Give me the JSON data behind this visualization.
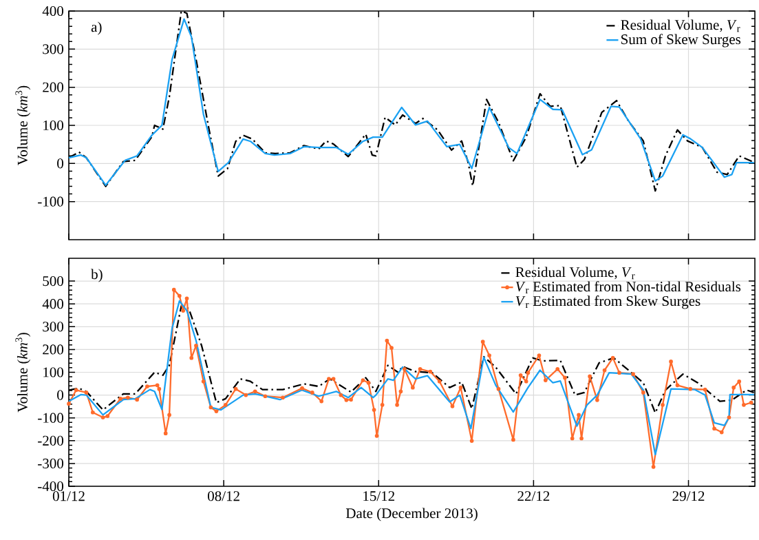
{
  "chart_data": [
    {
      "type": "line",
      "ylabel": "Volume (*km*$^{3}$)",
      "annotations": [
        "a)"
      ],
      "xlim": [
        "2013-12-01",
        "2014-01-01"
      ],
      "ylim": [
        -200,
        400
      ],
      "xticks": [
        {
          "value": "2013-12-01",
          "label": null
        },
        {
          "value": "2013-12-08",
          "label": null
        },
        {
          "value": "2013-12-15",
          "label": null
        },
        {
          "value": "2013-12-22",
          "label": null
        },
        {
          "value": "2013-12-29",
          "label": null
        }
      ],
      "yticks": [
        -100,
        0,
        100,
        200,
        300,
        400
      ],
      "grid": true,
      "legend": "top right",
      "tick_labels": "y",
      "series": [
        {
          "name": "Residual Volume, *V*$_{r}$",
          "color": "#000000",
          "line_style": "dashdot",
          "x": [
            "2013-12-01T00:00",
            "2013-12-01T11:00",
            "2013-12-01T19:00",
            "2013-12-02T16:00",
            "2013-12-03T11:00",
            "2013-12-04T00:00",
            "2013-12-04T18:00",
            "2013-12-04T21:00",
            "2013-12-05T06:00",
            "2013-12-05T13:00",
            "2013-12-06T02:00",
            "2013-12-06T08:00",
            "2013-12-06T18:00",
            "2013-12-07T08:00",
            "2013-12-07T18:00",
            "2013-12-08T04:00",
            "2013-12-08T13:00",
            "2013-12-08T21:00",
            "2013-12-09T07:00",
            "2013-12-09T21:00",
            "2013-12-10T08:00",
            "2013-12-11T00:00",
            "2013-12-11T15:00",
            "2013-12-12T07:00",
            "2013-12-12T15:00",
            "2013-12-12T23:00",
            "2013-12-13T15:00",
            "2013-12-14T10:00",
            "2013-12-14T17:00",
            "2013-12-14T21:00",
            "2013-12-15T07:00",
            "2013-12-15T18:00",
            "2013-12-16T02:00",
            "2013-12-16T16:00",
            "2013-12-17T00:00",
            "2013-12-17T16:00",
            "2013-12-18T07:00",
            "2013-12-18T18:00",
            "2013-12-19T01:00",
            "2013-12-19T06:00",
            "2013-12-19T21:00",
            "2013-12-20T10:00",
            "2013-12-21T02:00",
            "2013-12-21T16:00",
            "2013-12-22T07:00",
            "2013-12-22T18:00",
            "2013-12-23T05:00",
            "2013-12-23T23:00",
            "2013-12-24T07:00",
            "2013-12-25T02:00",
            "2013-12-25T18:00",
            "2013-12-26T07:00",
            "2013-12-26T23:00",
            "2013-12-27T12:00",
            "2013-12-27T23:00",
            "2013-12-28T12:00",
            "2013-12-28T23:00",
            "2013-12-29T15:00",
            "2013-12-30T07:00",
            "2013-12-30T18:00",
            "2013-12-31T07:00",
            "2013-12-31T23:00"
          ],
          "values": [
            15,
            30,
            15,
            -60,
            5,
            8,
            70,
            100,
            90,
            175,
            400,
            394,
            273,
            90,
            -33,
            -14,
            58,
            74,
            64,
            28,
            26,
            28,
            47,
            38,
            59,
            51,
            18,
            77,
            22,
            20,
            121,
            101,
            127,
            105,
            118,
            88,
            35,
            59,
            3,
            -59,
            168,
            108,
            7,
            69,
            183,
            150,
            152,
            -10,
            10,
            134,
            165,
            111,
            59,
            -72,
            20,
            88,
            59,
            42,
            -23,
            -29,
            20,
            3
          ]
        },
        {
          "name": "Sum of Skew Surges",
          "color": "#1ba1f2",
          "x": [
            "2013-12-01T00:00",
            "2013-12-01T13:00",
            "2013-12-01T19:00",
            "2013-12-02T16:00",
            "2013-12-03T13:00",
            "2013-12-04T02:00",
            "2013-12-04T18:00",
            "2013-12-05T05:00",
            "2013-12-05T16:00",
            "2013-12-06T05:00",
            "2013-12-06T13:00",
            "2013-12-07T02:00",
            "2013-12-07T18:00",
            "2013-12-08T05:00",
            "2013-12-08T21:00",
            "2013-12-09T05:00",
            "2013-12-09T21:00",
            "2013-12-10T07:00",
            "2013-12-11T00:00",
            "2013-12-11T15:00",
            "2013-12-12T07:00",
            "2013-12-13T02:00",
            "2013-12-13T15:00",
            "2013-12-14T07:00",
            "2013-12-14T18:00",
            "2013-12-15T04:00",
            "2013-12-16T01:00",
            "2013-12-16T16:00",
            "2013-12-17T05:00",
            "2013-12-18T02:00",
            "2013-12-18T16:00",
            "2013-12-19T05:00",
            "2013-12-20T00:00",
            "2013-12-20T21:00",
            "2013-12-21T06:00",
            "2013-12-22T07:00",
            "2013-12-22T21:00",
            "2013-12-23T07:00",
            "2013-12-24T05:00",
            "2013-12-24T15:00",
            "2013-12-25T12:00",
            "2013-12-25T21:00",
            "2013-12-26T20:00",
            "2013-12-27T12:00",
            "2013-12-27T20:00",
            "2013-12-28T18:00",
            "2013-12-29T02:00",
            "2013-12-29T15:00",
            "2013-12-30T15:00",
            "2013-12-30T23:00",
            "2013-12-31T04:00",
            "2013-12-31T23:00"
          ],
          "values": [
            15,
            22,
            15,
            -57,
            8,
            20,
            74,
            100,
            273,
            379,
            332,
            129,
            -21,
            2,
            64,
            58,
            26,
            22,
            26,
            44,
            42,
            42,
            24,
            58,
            69,
            69,
            147,
            101,
            111,
            44,
            50,
            -13,
            147,
            42,
            26,
            168,
            142,
            141,
            23,
            36,
            150,
            148,
            65,
            -46,
            -33,
            75,
            65,
            42,
            -36,
            -29,
            2,
            2
          ]
        }
      ]
    },
    {
      "type": "line",
      "xlabel": "Date (December 2013)",
      "ylabel": "Volume (*km*$^{3}$)",
      "annotations": [
        "b)"
      ],
      "xlim": [
        "2013-12-01",
        "2014-01-01"
      ],
      "ylim": [
        -400,
        600
      ],
      "xticks": [
        {
          "value": "2013-12-01",
          "label": "01/12"
        },
        {
          "value": "2013-12-08",
          "label": "08/12"
        },
        {
          "value": "2013-12-15",
          "label": "15/12"
        },
        {
          "value": "2013-12-22",
          "label": "22/12"
        },
        {
          "value": "2013-12-29",
          "label": "29/12"
        }
      ],
      "yticks": [
        -400,
        -300,
        -200,
        -100,
        0,
        100,
        200,
        300,
        400,
        500
      ],
      "grid": true,
      "legend": "top right",
      "series": [
        {
          "name": "Residual Volume, *V*$_{r}$",
          "color": "#000000",
          "line_style": "dashdot",
          "x": [
            "2013-12-01T00:00",
            "2013-12-01T11:00",
            "2013-12-01T19:00",
            "2013-12-02T13:00",
            "2013-12-03T11:00",
            "2013-12-04T00:00",
            "2013-12-04T21:00",
            "2013-12-05T06:00",
            "2013-12-05T13:00",
            "2013-12-06T02:00",
            "2013-12-06T10:00",
            "2013-12-07T00:00",
            "2013-12-07T16:00",
            "2013-12-08T02:00",
            "2013-12-08T18:00",
            "2013-12-09T05:00",
            "2013-12-09T18:00",
            "2013-12-10T16:00",
            "2013-12-11T15:00",
            "2013-12-12T07:00",
            "2013-12-12T19:00",
            "2013-12-13T18:00",
            "2013-12-14T10:00",
            "2013-12-14T21:00",
            "2013-12-15T10:00",
            "2013-12-15T21:00",
            "2013-12-16T02:00",
            "2013-12-16T16:00",
            "2013-12-17T10:00",
            "2013-12-18T05:00",
            "2013-12-18T18:00",
            "2013-12-19T05:00",
            "2013-12-19T18:00",
            "2013-12-20T07:00",
            "2013-12-21T05:00",
            "2013-12-21T23:00",
            "2013-12-22T10:00",
            "2013-12-23T05:00",
            "2013-12-23T21:00",
            "2013-12-24T07:00",
            "2013-12-24T23:00",
            "2013-12-25T15:00",
            "2013-12-26T07:00",
            "2013-12-26T23:00",
            "2013-12-27T12:00",
            "2013-12-27T23:00",
            "2013-12-28T18:00",
            "2013-12-29T10:00",
            "2013-12-30T10:00",
            "2013-12-30T23:00",
            "2013-12-31T15:00",
            "2013-12-31T23:00"
          ],
          "values": [
            22,
            30,
            16,
            -65,
            5,
            5,
            100,
            87,
            130,
            391,
            380,
            217,
            -33,
            -16,
            71,
            60,
            24,
            24,
            49,
            38,
            71,
            13,
            76,
            16,
            130,
            100,
            125,
            103,
            98,
            33,
            57,
            -60,
            168,
            122,
            5,
            163,
            150,
            152,
            0,
            11,
            141,
            163,
            109,
            54,
            -78,
            22,
            92,
            54,
            -27,
            -22,
            22,
            11
          ]
        },
        {
          "name": "*V*$_{r}$ Estimated from Non-tidal Residuals",
          "color": "#ff6b2b",
          "marker": "circle",
          "x": [
            "2013-12-01T00:00",
            "2013-12-01T08:00",
            "2013-12-01T19:00",
            "2013-12-02T02:00",
            "2013-12-02T13:00",
            "2013-12-02T18:00",
            "2013-12-03T08:00",
            "2013-12-03T16:00",
            "2013-12-04T02:00",
            "2013-12-04T13:00",
            "2013-12-05T00:00",
            "2013-12-05T02:00",
            "2013-12-05T09:00",
            "2013-12-05T13:00",
            "2013-12-05T18:00",
            "2013-12-06T00:00",
            "2013-12-06T04:00",
            "2013-12-06T08:00",
            "2013-12-06T13:00",
            "2013-12-06T18:00",
            "2013-12-07T02:00",
            "2013-12-07T10:00",
            "2013-12-07T16:00",
            "2013-12-08T02:00",
            "2013-12-08T13:00",
            "2013-12-09T00:00",
            "2013-12-09T10:00",
            "2013-12-09T21:00",
            "2013-12-10T16:00",
            "2013-12-11T13:00",
            "2013-12-12T00:00",
            "2013-12-12T10:00",
            "2013-12-12T18:00",
            "2013-12-12T23:00",
            "2013-12-13T07:00",
            "2013-12-13T13:00",
            "2013-12-13T18:00",
            "2013-12-14T07:00",
            "2013-12-14T13:00",
            "2013-12-14T19:00",
            "2013-12-14T22:00",
            "2013-12-15T04:00",
            "2013-12-15T09:00",
            "2013-12-15T14:00",
            "2013-12-15T20:00",
            "2013-12-16T00:00",
            "2013-12-16T04:00",
            "2013-12-16T13:00",
            "2013-12-16T21:00",
            "2013-12-17T08:00",
            "2013-12-17T18:00",
            "2013-12-18T08:00",
            "2013-12-18T17:00",
            "2013-12-19T05:00",
            "2013-12-19T17:00",
            "2013-12-20T00:00",
            "2013-12-20T10:00",
            "2013-12-21T02:00",
            "2013-12-21T10:00",
            "2013-12-21T16:00",
            "2013-12-21T18:00",
            "2013-12-22T06:00",
            "2013-12-22T13:00",
            "2013-12-23T02:00",
            "2013-12-23T10:00",
            "2013-12-23T18:00",
            "2013-12-24T01:00",
            "2013-12-24T04:00",
            "2013-12-24T13:00",
            "2013-12-24T21:00",
            "2013-12-25T05:00",
            "2013-12-25T14:00",
            "2013-12-25T21:00",
            "2013-12-26T12:00",
            "2013-12-26T23:00",
            "2013-12-27T10:00",
            "2013-12-27T20:00",
            "2013-12-28T05:00",
            "2013-12-28T12:00",
            "2013-12-29T02:00",
            "2013-12-29T18:00",
            "2013-12-30T04:00",
            "2013-12-30T12:00",
            "2013-12-30T20:00",
            "2013-12-31T01:00",
            "2013-12-31T07:00",
            "2013-12-31T12:00",
            "2013-12-31T20:00"
          ],
          "values": [
            -38,
            22,
            11,
            -76,
            -98,
            -92,
            -16,
            -11,
            -20,
            38,
            43,
            27,
            -168,
            -87,
            462,
            435,
            370,
            424,
            163,
            217,
            60,
            -54,
            -71,
            -43,
            27,
            0,
            16,
            -5,
            -11,
            30,
            11,
            -27,
            71,
            71,
            0,
            -22,
            -20,
            65,
            54,
            -65,
            -179,
            -43,
            239,
            207,
            -43,
            16,
            114,
            33,
            114,
            103,
            60,
            -49,
            33,
            -201,
            234,
            174,
            27,
            -196,
            87,
            60,
            98,
            174,
            65,
            114,
            76,
            -190,
            -87,
            -190,
            82,
            -22,
            109,
            163,
            98,
            92,
            11,
            -315,
            -43,
            147,
            43,
            27,
            24,
            -147,
            -163,
            -98,
            33,
            60,
            -43,
            -33
          ]
        },
        {
          "name": "*V*$_{r}$ Estimated from Skew Surges",
          "color": "#1ba1f2",
          "x": [
            "2013-12-01T00:00",
            "2013-12-01T13:00",
            "2013-12-01T19:00",
            "2013-12-02T13:00",
            "2013-12-03T11:00",
            "2013-12-04T00:00",
            "2013-12-04T16:00",
            "2013-12-04T21:00",
            "2013-12-05T05:00",
            "2013-12-05T16:00",
            "2013-12-06T00:00",
            "2013-12-06T08:00",
            "2013-12-06T18:00",
            "2013-12-07T10:00",
            "2013-12-07T21:00",
            "2013-12-08T21:00",
            "2013-12-09T10:00",
            "2013-12-10T13:00",
            "2013-12-11T13:00",
            "2013-12-12T07:00",
            "2013-12-13T02:00",
            "2013-12-13T15:00",
            "2013-12-14T05:00",
            "2013-12-14T18:00",
            "2013-12-14T21:00",
            "2013-12-15T10:00",
            "2013-12-15T16:00",
            "2013-12-16T02:00",
            "2013-12-16T16:00",
            "2013-12-17T05:00",
            "2013-12-18T05:00",
            "2013-12-18T16:00",
            "2013-12-19T04:00",
            "2013-12-19T18:00",
            "2013-12-20T07:00",
            "2013-12-21T02:00",
            "2013-12-21T18:00",
            "2013-12-22T07:00",
            "2013-12-22T21:00",
            "2013-12-23T05:00",
            "2013-12-23T23:00",
            "2013-12-24T10:00",
            "2013-12-24T21:00",
            "2013-12-25T10:00",
            "2013-12-26T10:00",
            "2013-12-26T23:00",
            "2013-12-27T12:00",
            "2013-12-28T05:00",
            "2013-12-29T07:00",
            "2013-12-29T18:00",
            "2013-12-30T04:00",
            "2013-12-30T15:00",
            "2013-12-30T20:00",
            "2013-12-30T21:00",
            "2013-12-31T23:00"
          ],
          "values": [
            -27,
            2,
            0,
            -87,
            -20,
            -16,
            24,
            16,
            -63,
            293,
            413,
            370,
            239,
            -54,
            -65,
            0,
            5,
            -20,
            22,
            -5,
            16,
            -11,
            33,
            -11,
            0,
            71,
            65,
            123,
            71,
            85,
            -30,
            0,
            -147,
            166,
            43,
            -74,
            33,
            109,
            54,
            62,
            -136,
            -43,
            0,
            98,
            92,
            22,
            -261,
            27,
            24,
            0,
            -122,
            -133,
            -98,
            2,
            2
          ]
        }
      ]
    }
  ]
}
